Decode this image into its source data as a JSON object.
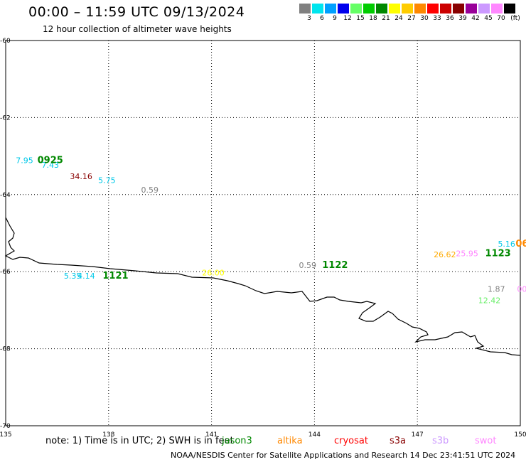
{
  "title": "00:00 – 11:59 UTC 09/13/2024",
  "subtitle": "12 hour collection of altimeter wave heights",
  "color_scale": {
    "unit": "(ft)",
    "bins": [
      {
        "label": "3",
        "color": "#808080"
      },
      {
        "label": "6",
        "color": "#00e5ee"
      },
      {
        "label": "9",
        "color": "#00a0ff"
      },
      {
        "label": "12",
        "color": "#0000ee"
      },
      {
        "label": "15",
        "color": "#66ff66"
      },
      {
        "label": "18",
        "color": "#00cc00"
      },
      {
        "label": "21",
        "color": "#008800"
      },
      {
        "label": "24",
        "color": "#ffff00"
      },
      {
        "label": "27",
        "color": "#ffcc00"
      },
      {
        "label": "30",
        "color": "#ff8800"
      },
      {
        "label": "33",
        "color": "#ff0000"
      },
      {
        "label": "36",
        "color": "#cc0000"
      },
      {
        "label": "39",
        "color": "#880000"
      },
      {
        "label": "42",
        "color": "#990099"
      },
      {
        "label": "45",
        "color": "#cc99ff"
      },
      {
        "label": "70",
        "color": "#ff88ff"
      },
      {
        "label": "",
        "color": "#000000"
      }
    ]
  },
  "map": {
    "lon_range": [
      135,
      150
    ],
    "lat_range": [
      -70,
      -60
    ],
    "lon_ticks": [
      "135",
      "138",
      "141",
      "144",
      "147",
      "150"
    ],
    "lat_ticks": [
      "-60",
      "-62",
      "-64",
      "-66",
      "-68",
      "-70"
    ],
    "grid": "dotted"
  },
  "observations": [
    {
      "text": "7.95",
      "color": "#00c8e8",
      "lon": 135.55,
      "lat": -63.18
    },
    {
      "text": "7.43",
      "color": "#00c8e8",
      "lon": 136.3,
      "lat": -63.3
    },
    {
      "text": "0925",
      "color": "#008800",
      "lon": 136.3,
      "lat": -63.18,
      "bold": true
    },
    {
      "text": "34.16",
      "color": "#880000",
      "lon": 137.2,
      "lat": -63.6
    },
    {
      "text": "5.75",
      "color": "#00c8e8",
      "lon": 137.95,
      "lat": -63.7
    },
    {
      "text": "0.59",
      "color": "#808080",
      "lon": 139.2,
      "lat": -63.95
    },
    {
      "text": "5.35",
      "color": "#00c8e8",
      "lon": 136.95,
      "lat": -66.18
    },
    {
      "text": "4.14",
      "color": "#00c8e8",
      "lon": 137.35,
      "lat": -66.18
    },
    {
      "text": "1121",
      "color": "#008800",
      "lon": 138.2,
      "lat": -66.18,
      "bold": true
    },
    {
      "text": "26.00",
      "color": "#ffff00",
      "lon": 141.05,
      "lat": -66.1
    },
    {
      "text": "0.59",
      "color": "#808080",
      "lon": 143.8,
      "lat": -65.9
    },
    {
      "text": "1122",
      "color": "#008800",
      "lon": 144.6,
      "lat": -65.9,
      "bold": true
    },
    {
      "text": "26.62",
      "color": "#ffaa00",
      "lon": 147.8,
      "lat": -65.63
    },
    {
      "text": "25.95",
      "color": "#ff88ff",
      "lon": 148.45,
      "lat": -65.6
    },
    {
      "text": "1123",
      "color": "#008800",
      "lon": 149.35,
      "lat": -65.6,
      "bold": true
    },
    {
      "text": "5.16",
      "color": "#00c8e8",
      "lon": 149.6,
      "lat": -65.35
    },
    {
      "text": "06",
      "color": "#ff8800",
      "lon": 150.05,
      "lat": -65.35,
      "bold": true
    },
    {
      "text": "1.87",
      "color": "#808080",
      "lon": 149.3,
      "lat": -66.52
    },
    {
      "text": "00",
      "color": "#ff88ff",
      "lon": 150.05,
      "lat": -66.52
    },
    {
      "text": "12.42",
      "color": "#66ee66",
      "lon": 149.1,
      "lat": -66.82
    }
  ],
  "note": "note: 1) Time is in UTC; 2) SWH is in feet",
  "legend": [
    {
      "label": "jason3",
      "color": "#008800"
    },
    {
      "label": "altika",
      "color": "#ff8800"
    },
    {
      "label": "cryosat",
      "color": "#ff0000"
    },
    {
      "label": "s3a",
      "color": "#880000"
    },
    {
      "label": "s3b",
      "color": "#cc99ff"
    },
    {
      "label": "swot",
      "color": "#ff88ff"
    }
  ],
  "credit": "NOAA/NESDIS Center for Satellite Applications and Research   14 Dec 23:41:51 UTC 2024"
}
